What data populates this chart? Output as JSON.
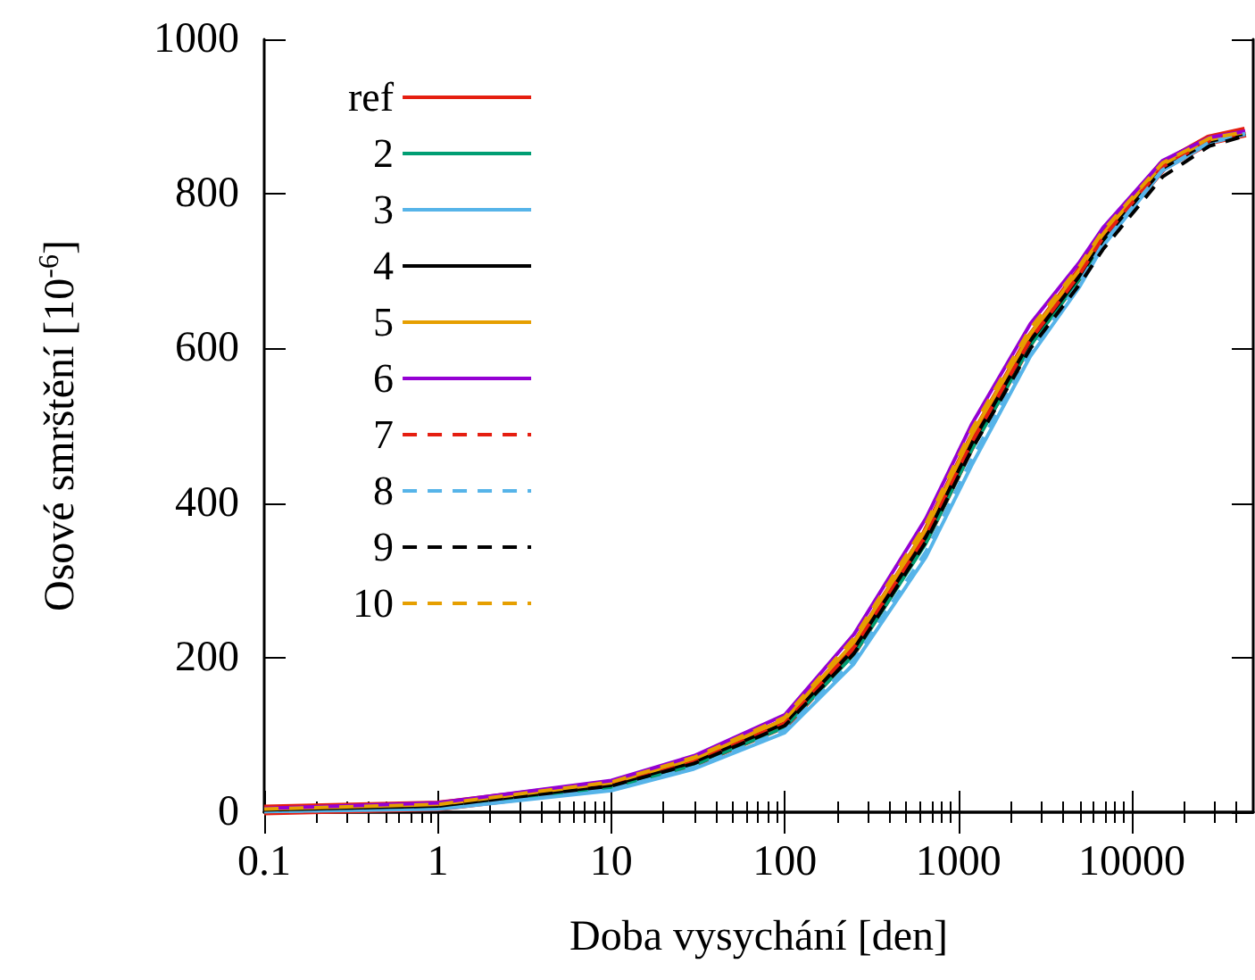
{
  "chart_data": {
    "type": "line",
    "xlabel": "Doba vysychání [den]",
    "ylabel": "Osové smrštění [10$^{-6}$]",
    "log": "x",
    "xlim": [
      0.1,
      50000
    ],
    "xticks": [
      0.1,
      1,
      10,
      100,
      1000,
      10000
    ],
    "ylim": [
      0,
      1000
    ],
    "yticks": [
      0,
      200,
      400,
      600,
      800,
      1000
    ],
    "grid": false,
    "legend": "top left",
    "marker": "none",
    "x": [
      0.1,
      1,
      10,
      30,
      100,
      250,
      650,
      1200,
      2600,
      5000,
      6800,
      15000,
      28000,
      45000
    ],
    "series": [
      {
        "name": "ref",
        "color": "#e51e10",
        "line_style": "solid",
        "values": [
          3,
          8,
          35,
          65,
          115,
          212,
          358,
          480,
          612,
          697,
          744,
          836,
          870,
          880
        ]
      },
      {
        "name": "2",
        "color": "#009e73",
        "line_style": "solid",
        "values": [
          2,
          6,
          32,
          61,
          110,
          204,
          348,
          470,
          604,
          690,
          738,
          832,
          867,
          878
        ]
      },
      {
        "name": "3",
        "color": "#56b4e9",
        "line_style": "solid",
        "values": [
          1,
          4,
          28,
          56,
          103,
          192,
          330,
          450,
          590,
          680,
          732,
          830,
          866,
          877
        ]
      },
      {
        "name": "4",
        "color": "#000000",
        "line_style": "solid",
        "values": [
          3,
          8,
          35,
          65,
          115,
          211,
          356,
          478,
          610,
          694,
          740,
          833,
          868,
          878
        ]
      },
      {
        "name": "5",
        "color": "#e69f00",
        "line_style": "solid",
        "values": [
          4,
          10,
          38,
          69,
          120,
          220,
          366,
          489,
          619,
          702,
          748,
          838,
          870,
          880
        ]
      },
      {
        "name": "6",
        "color": "#9400d3",
        "line_style": "solid",
        "values": [
          5,
          12,
          41,
          73,
          126,
          230,
          380,
          503,
          632,
          712,
          756,
          843,
          873,
          881
        ]
      },
      {
        "name": "7",
        "color": "#e51e10",
        "line_style": "dashed",
        "values": [
          3,
          8,
          35,
          65,
          115,
          212,
          357,
          479,
          611,
          696,
          743,
          835,
          869,
          879
        ]
      },
      {
        "name": "8",
        "color": "#56b4e9",
        "line_style": "dashed",
        "values": [
          1,
          5,
          30,
          58,
          106,
          197,
          337,
          458,
          596,
          685,
          735,
          831,
          867,
          878
        ]
      },
      {
        "name": "9",
        "color": "#000000",
        "line_style": "dashed",
        "values": [
          3,
          8,
          34,
          63,
          112,
          205,
          350,
          470,
          600,
          683,
          728,
          822,
          862,
          875
        ]
      },
      {
        "name": "10",
        "color": "#e69f00",
        "line_style": "dashed",
        "values": [
          4,
          10,
          39,
          71,
          123,
          225,
          373,
          496,
          626,
          707,
          752,
          840,
          872,
          880
        ]
      }
    ]
  }
}
